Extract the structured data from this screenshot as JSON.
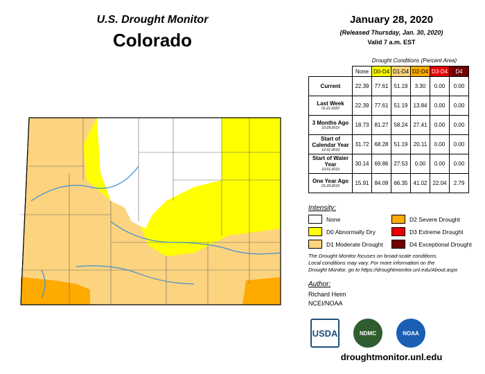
{
  "header": {
    "subtitle": "U.S. Drought Monitor",
    "title": "Colorado"
  },
  "date": {
    "title": "January 28, 2020",
    "released": "(Released Thursday, Jan. 30, 2020)",
    "valid": "Valid 7 a.m. EST"
  },
  "table": {
    "caption": "Drought Conditions (Percent Area)",
    "columns": [
      {
        "label": "None",
        "color": "#ffffff"
      },
      {
        "label": "D0-D4",
        "color": "#ffff00"
      },
      {
        "label": "D1-D4",
        "color": "#fcd37f"
      },
      {
        "label": "D2-D4",
        "color": "#ffaa00"
      },
      {
        "label": "D3-D4",
        "color": "#e60000"
      },
      {
        "label": "D4",
        "color": "#730000"
      }
    ],
    "rows": [
      {
        "label": "Current",
        "values": [
          "22.39",
          "77.61",
          "51.19",
          "3.30",
          "0.00",
          "0.00"
        ]
      },
      {
        "label": "Last Week",
        "date": "01-21-2020",
        "values": [
          "22.39",
          "77.61",
          "51.19",
          "13.84",
          "0.00",
          "0.00"
        ]
      },
      {
        "label": "3 Months Ago",
        "date": "10-29-2019",
        "values": [
          "18.73",
          "81.27",
          "58.24",
          "27.41",
          "0.00",
          "0.00"
        ]
      },
      {
        "label": "Start of Calendar Year",
        "date": "12-31-2019",
        "values": [
          "31.72",
          "68.28",
          "51.19",
          "20.11",
          "0.00",
          "0.00"
        ]
      },
      {
        "label": "Start of Water Year",
        "date": "10-01-2019",
        "values": [
          "30.14",
          "69.86",
          "27.53",
          "0.00",
          "0.00",
          "0.00"
        ]
      },
      {
        "label": "One Year Ago",
        "date": "01-29-2019",
        "values": [
          "15.91",
          "84.09",
          "66.35",
          "41.02",
          "22.04",
          "2.79"
        ]
      }
    ]
  },
  "legend": {
    "title": "Intensity:",
    "items": [
      {
        "label": "None",
        "color": "#ffffff"
      },
      {
        "label": "D0 Abnormally Dry",
        "color": "#ffff00"
      },
      {
        "label": "D1 Moderate Drought",
        "color": "#fcd37f"
      },
      {
        "label": "D2 Severe Drought",
        "color": "#ffaa00"
      },
      {
        "label": "D3 Extreme Drought",
        "color": "#e60000"
      },
      {
        "label": "D4 Exceptional Drought",
        "color": "#730000"
      }
    ]
  },
  "note": [
    "The Drought Monitor focuses on broad-scale conditions.",
    "Local conditions may vary. For more information on the",
    "Drought Monitor, go to https://droughtmonitor.unl.edu/About.aspx"
  ],
  "author": {
    "title": "Author:",
    "name": "Richard Heim",
    "org": "NCEI/NOAA"
  },
  "logos": [
    "USDA",
    "NDMC",
    "NOAA"
  ],
  "url": "droughtmonitor.unl.edu"
}
